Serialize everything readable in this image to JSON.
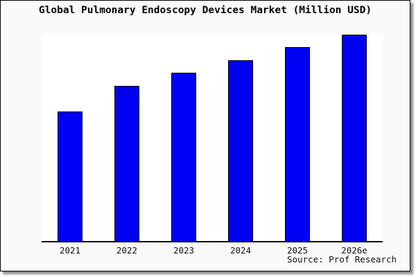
{
  "chart_data": {
    "type": "bar",
    "title": "Global Pulmonary Endoscopy Devices Market (Million USD)",
    "categories": [
      "2021",
      "2022",
      "2023",
      "2024",
      "2025",
      "2026e"
    ],
    "values": [
      62.8,
      75.2,
      81.5,
      87.6,
      94.0,
      100.0
    ],
    "values_note": "y-axis has no ticks, gridlines or value labels; values are relative bar heights (tallest bar = 100)",
    "ylim": [
      0,
      100.3
    ],
    "xlabel": "",
    "ylabel": "",
    "grid": false,
    "legend": "none",
    "source": "Source: Prof Research",
    "colors": {
      "bar_fill": "#0000f5",
      "bar_border": "#000000",
      "axis": "#000000",
      "plot_background": "#ffffff",
      "canvas_background": "#fafafa",
      "frame_border": "#000000",
      "title_text": "#000000"
    }
  }
}
